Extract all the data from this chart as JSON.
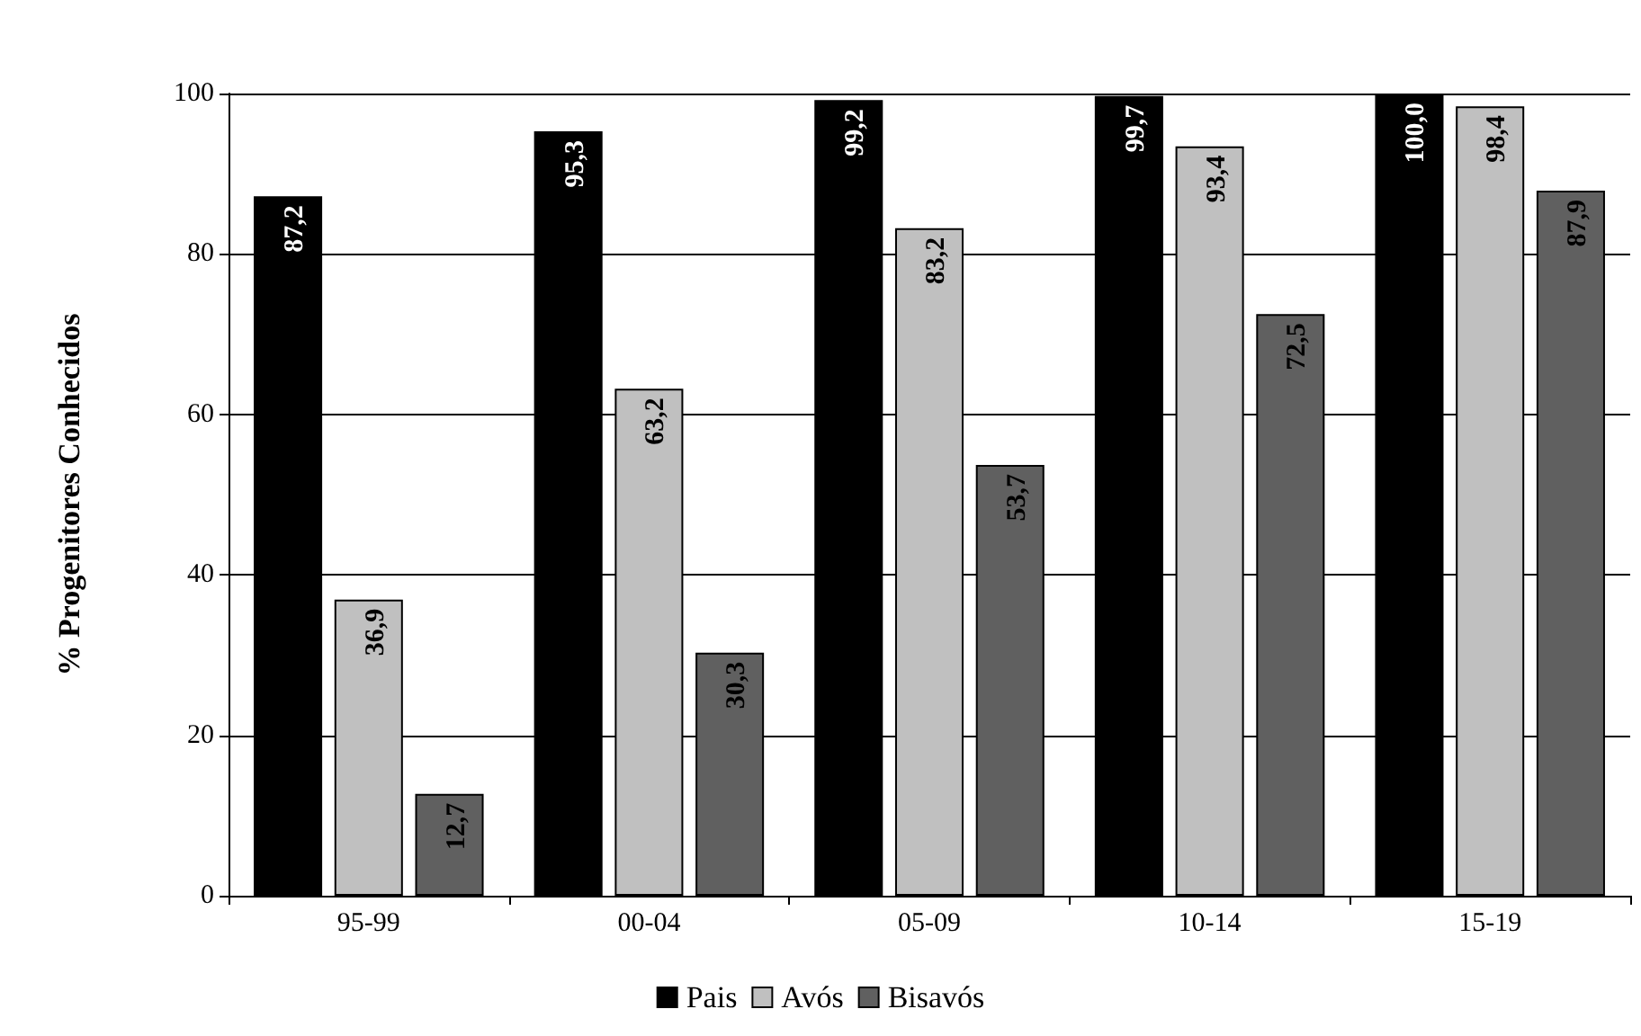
{
  "chart_data": {
    "type": "bar",
    "ylabel": "% Progenitores Conhecidos",
    "categories": [
      "95-99",
      "00-04",
      "05-09",
      "10-14",
      "15-19"
    ],
    "series": [
      {
        "name": "Pais",
        "color": "#000000",
        "values": [
          87.2,
          95.3,
          99.2,
          99.7,
          100.0
        ],
        "value_labels": [
          "87,2",
          "95,3",
          "99,2",
          "99,7",
          "100,0"
        ]
      },
      {
        "name": "Avós",
        "color": "#c0c0c0",
        "values": [
          36.9,
          63.2,
          83.2,
          93.4,
          98.4
        ],
        "value_labels": [
          "36,9",
          "63,2",
          "83,2",
          "93,4",
          "98,4"
        ]
      },
      {
        "name": "Bisavós",
        "color": "#606060",
        "values": [
          12.7,
          30.3,
          53.7,
          72.5,
          87.9
        ],
        "value_labels": [
          "12,7",
          "30,3",
          "53,7",
          "72,5",
          "87,9"
        ]
      }
    ],
    "ylim": [
      0,
      100
    ],
    "yticks": [
      0,
      20,
      40,
      60,
      80,
      100
    ],
    "grid": "y",
    "legend": "bottom"
  }
}
